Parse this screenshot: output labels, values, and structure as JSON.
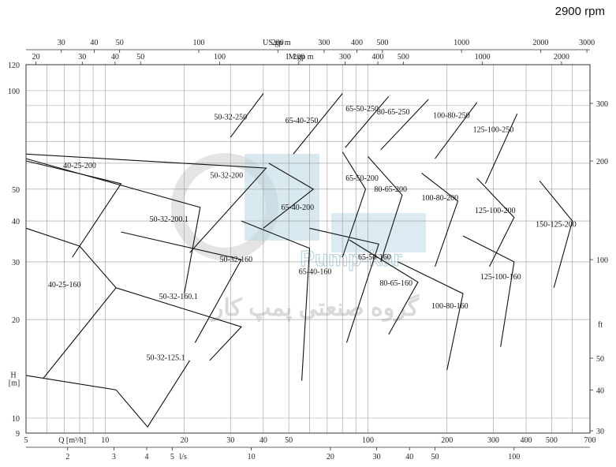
{
  "header": {
    "speed": "2900 rpm"
  },
  "chart_data": {
    "type": "line",
    "x_scale": "log",
    "y_scale": "log",
    "xlim": [
      5,
      700
    ],
    "ylim": [
      9,
      120
    ],
    "x_unit_label": "Q [m³/h]",
    "y_unit_label": "H\n[m]",
    "x_ticks": [
      5,
      10,
      20,
      30,
      40,
      50,
      100,
      200,
      300,
      400,
      500,
      700
    ],
    "y_ticks": [
      9,
      10,
      20,
      30,
      40,
      50,
      100,
      120
    ],
    "top_axis_us": {
      "label": "US.gp m",
      "ticks": [
        30,
        40,
        50,
        100,
        200,
        300,
        400,
        500,
        1000,
        2000,
        3000
      ],
      "tick_labels": [
        "30",
        "40",
        "50",
        "100",
        "200",
        "300",
        "400",
        "500",
        "1000",
        "2000",
        "3000"
      ],
      "m3h_per_unit": 0.22712
    },
    "top_axis_im": {
      "label": "IM.gp m",
      "ticks": [
        20,
        30,
        40,
        50,
        100,
        200,
        300,
        400,
        500,
        1000,
        2000
      ],
      "tick_labels": [
        "20",
        "30",
        "40",
        "50",
        "100",
        "200",
        "300",
        "400",
        "500",
        "1000",
        "2000"
      ],
      "m3h_per_unit": 0.27277
    },
    "bottom_axis_ls": {
      "label": "l/s",
      "ticks": [
        2,
        3,
        4,
        5,
        10,
        20,
        30,
        40,
        50,
        100
      ],
      "tick_labels": [
        "2",
        "3",
        "4",
        "5",
        "10",
        "20",
        "30",
        "40",
        "50",
        "100"
      ],
      "m3h_per_unit": 3.6
    },
    "right_axis_ft": {
      "label": "ft",
      "ticks": [
        30,
        40,
        50,
        100,
        200,
        300
      ],
      "tick_labels": [
        "30",
        "40",
        "50",
        "100",
        "200",
        "300"
      ],
      "m_per_unit": 0.3048
    },
    "models": [
      {
        "name": "40-25-200",
        "label_at": [
          8,
          59
        ],
        "points": [
          [
            5,
            61
          ],
          [
            11.5,
            52
          ],
          [
            7.5,
            31
          ]
        ]
      },
      {
        "name": "40-25-160",
        "label_at": [
          7,
          25.5
        ],
        "points": [
          [
            5,
            38
          ],
          [
            8,
            33.5
          ],
          [
            11,
            25
          ],
          [
            5.8,
            13.2
          ]
        ]
      },
      {
        "name": "50-32-250",
        "label_at": [
          30,
          83
        ],
        "points": [
          [
            40,
            98
          ],
          [
            30,
            72
          ]
        ]
      },
      {
        "name": "50-32-200",
        "label_at": [
          29,
          55
        ],
        "points": [
          [
            5,
            64
          ],
          [
            41,
            58
          ],
          [
            21,
            32
          ]
        ]
      },
      {
        "name": "50-32-200.1",
        "label_at": [
          17.5,
          40.5
        ],
        "points": [
          [
            5,
            62
          ],
          [
            23,
            44
          ],
          [
            20,
            24
          ]
        ]
      },
      {
        "name": "50-32-160",
        "label_at": [
          31.5,
          30.5
        ],
        "points": [
          [
            11.5,
            37
          ],
          [
            33,
            30.5
          ],
          [
            22,
            17
          ]
        ]
      },
      {
        "name": "50-32-160.1",
        "label_at": [
          19,
          23.5
        ],
        "points": [
          [
            11,
            25
          ],
          [
            33,
            19
          ],
          [
            25,
            15
          ]
        ]
      },
      {
        "name": "50-32-125.1",
        "label_at": [
          17,
          15.3
        ],
        "points": [
          [
            5,
            13.5
          ],
          [
            11,
            12.2
          ],
          [
            14.5,
            9.4
          ],
          [
            21,
            15
          ]
        ]
      },
      {
        "name": "65-40-250",
        "label_at": [
          56,
          81
        ],
        "points": [
          [
            80,
            98
          ],
          [
            52,
            64
          ]
        ]
      },
      {
        "name": "65-40-200",
        "label_at": [
          54,
          44
        ],
        "points": [
          [
            42,
            60
          ],
          [
            62,
            50
          ],
          [
            40,
            38
          ]
        ]
      },
      {
        "name": "65-40-160",
        "label_at": [
          63,
          28
        ],
        "points": [
          [
            33,
            40
          ],
          [
            60,
            33
          ],
          [
            56,
            13
          ]
        ]
      },
      {
        "name": "65-50-250",
        "label_at": [
          95,
          88
        ],
        "points": [
          [
            120,
            96
          ],
          [
            82,
            67
          ]
        ]
      },
      {
        "name": "65-50-200",
        "label_at": [
          95,
          54
        ],
        "points": [
          [
            80,
            65
          ],
          [
            98,
            50
          ],
          [
            80,
            31
          ]
        ]
      },
      {
        "name": "65-50-160",
        "label_at": [
          106,
          31
        ],
        "points": [
          [
            60,
            38
          ],
          [
            110,
            34
          ],
          [
            83,
            17
          ]
        ]
      },
      {
        "name": "80-65-250",
        "label_at": [
          125,
          86
        ],
        "points": [
          [
            170,
            94
          ],
          [
            112,
            66
          ]
        ]
      },
      {
        "name": "80-65-200",
        "label_at": [
          122,
          50
        ],
        "points": [
          [
            100,
            63
          ],
          [
            135,
            48
          ],
          [
            112,
            30
          ]
        ]
      },
      {
        "name": "80-65-160",
        "label_at": [
          128,
          25.8
        ],
        "points": [
          [
            85,
            35
          ],
          [
            155,
            26
          ],
          [
            120,
            18
          ]
        ]
      },
      {
        "name": "100-80-250",
        "label_at": [
          208,
          84
        ],
        "points": [
          [
            260,
            92
          ],
          [
            180,
            62
          ]
        ]
      },
      {
        "name": "100-80-200",
        "label_at": [
          188,
          47
        ],
        "points": [
          [
            160,
            56
          ],
          [
            220,
            46
          ],
          [
            180,
            29
          ]
        ]
      },
      {
        "name": "100-80-160",
        "label_at": [
          205,
          22
        ],
        "points": [
          [
            130,
            30
          ],
          [
            230,
            24
          ],
          [
            200,
            14
          ]
        ]
      },
      {
        "name": "125-100-250",
        "label_at": [
          300,
          76
        ],
        "points": [
          [
            370,
            85
          ],
          [
            280,
            52
          ]
        ]
      },
      {
        "name": "125-100-200",
        "label_at": [
          305,
          43
        ],
        "points": [
          [
            260,
            54
          ],
          [
            360,
            41
          ],
          [
            290,
            29
          ]
        ]
      },
      {
        "name": "125-100-160",
        "label_at": [
          320,
          27
        ],
        "points": [
          [
            230,
            36
          ],
          [
            360,
            30
          ],
          [
            320,
            16.5
          ]
        ]
      },
      {
        "name": "150-125-200",
        "label_at": [
          520,
          39
        ],
        "points": [
          [
            450,
            53
          ],
          [
            600,
            40
          ],
          [
            510,
            25
          ]
        ]
      }
    ]
  },
  "watermark": {
    "brand": "Pump-kar",
    "tagline": "گروه صنعتی پمپ کار"
  }
}
